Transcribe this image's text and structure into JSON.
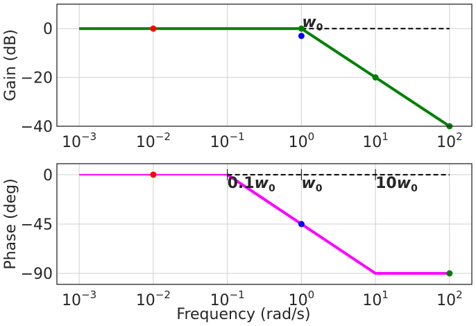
{
  "chart_data": [
    {
      "type": "line",
      "ylabel": "Gain (dB)",
      "xlabel": "",
      "xscale": "log",
      "xlim": [
        0.0005,
        200
      ],
      "ylim": [
        -40,
        10
      ],
      "x_ticks": [
        {
          "base": "10",
          "exp": "−3",
          "value": 0.001
        },
        {
          "base": "10",
          "exp": "−2",
          "value": 0.01
        },
        {
          "base": "10",
          "exp": "−1",
          "value": 0.1
        },
        {
          "base": "10",
          "exp": "0",
          "value": 1
        },
        {
          "base": "10",
          "exp": "1",
          "value": 10
        },
        {
          "base": "10",
          "exp": "2",
          "value": 100
        }
      ],
      "y_ticks": [
        {
          "label": "0",
          "value": 0
        },
        {
          "label": "−20",
          "value": -20
        },
        {
          "label": "−40",
          "value": -40
        }
      ],
      "grid": true,
      "series": [
        {
          "style": "line",
          "color": "#008000",
          "width": 4,
          "x": [
            0.001,
            1,
            100
          ],
          "y": [
            0,
            0,
            -40
          ]
        },
        {
          "style": "dashed",
          "color": "#000000",
          "width": 2,
          "x": [
            1,
            100
          ],
          "y": [
            0,
            0
          ]
        },
        {
          "style": "points",
          "color": "#ff0000",
          "x": [
            0.01
          ],
          "y": [
            0
          ]
        },
        {
          "style": "points",
          "color": "#0000ff",
          "x": [
            1
          ],
          "y": [
            -3
          ]
        },
        {
          "style": "points",
          "color": "#008000",
          "x": [
            1,
            10,
            100
          ],
          "y": [
            0,
            -20,
            -40
          ]
        }
      ],
      "annotations": [
        {
          "text": "w",
          "sub": "0",
          "x": 1,
          "y": 0
        }
      ]
    },
    {
      "type": "line",
      "ylabel": "Phase (deg)",
      "xlabel": "Frequency (rad/s)",
      "xscale": "log",
      "xlim": [
        0.0005,
        200
      ],
      "ylim": [
        -100,
        10
      ],
      "x_ticks": [
        {
          "base": "10",
          "exp": "−3",
          "value": 0.001
        },
        {
          "base": "10",
          "exp": "−2",
          "value": 0.01
        },
        {
          "base": "10",
          "exp": "−1",
          "value": 0.1
        },
        {
          "base": "10",
          "exp": "0",
          "value": 1
        },
        {
          "base": "10",
          "exp": "1",
          "value": 10
        },
        {
          "base": "10",
          "exp": "2",
          "value": 100
        }
      ],
      "y_ticks": [
        {
          "label": "0",
          "value": 0
        },
        {
          "label": "−45",
          "value": -45
        },
        {
          "label": "−90",
          "value": -90
        }
      ],
      "grid": true,
      "series": [
        {
          "style": "line",
          "color": "#ff00ff",
          "width": 2,
          "x": [
            0.001,
            0.1
          ],
          "y": [
            0,
            0
          ]
        },
        {
          "style": "line",
          "color": "#ff00ff",
          "width": 4,
          "x": [
            0.1,
            10,
            100
          ],
          "y": [
            0,
            -90,
            -90
          ]
        },
        {
          "style": "dashed",
          "color": "#000000",
          "width": 2,
          "x": [
            0.1,
            100
          ],
          "y": [
            0,
            0
          ]
        },
        {
          "style": "points",
          "color": "#ff0000",
          "x": [
            0.01
          ],
          "y": [
            0
          ]
        },
        {
          "style": "points",
          "color": "#0000ff",
          "x": [
            1
          ],
          "y": [
            -45
          ]
        },
        {
          "style": "points",
          "color": "#008000",
          "x": [
            100
          ],
          "y": [
            -90
          ]
        }
      ],
      "vmarks": [
        0.1,
        1,
        10
      ],
      "annotations": [
        {
          "prefix": "0.1",
          "text": "w",
          "sub": "0",
          "x": 0.1,
          "y": 0
        },
        {
          "prefix": "",
          "text": "w",
          "sub": "0",
          "x": 1,
          "y": 0
        },
        {
          "prefix": "10",
          "text": "w",
          "sub": "0",
          "x": 10,
          "y": 0
        }
      ]
    }
  ]
}
